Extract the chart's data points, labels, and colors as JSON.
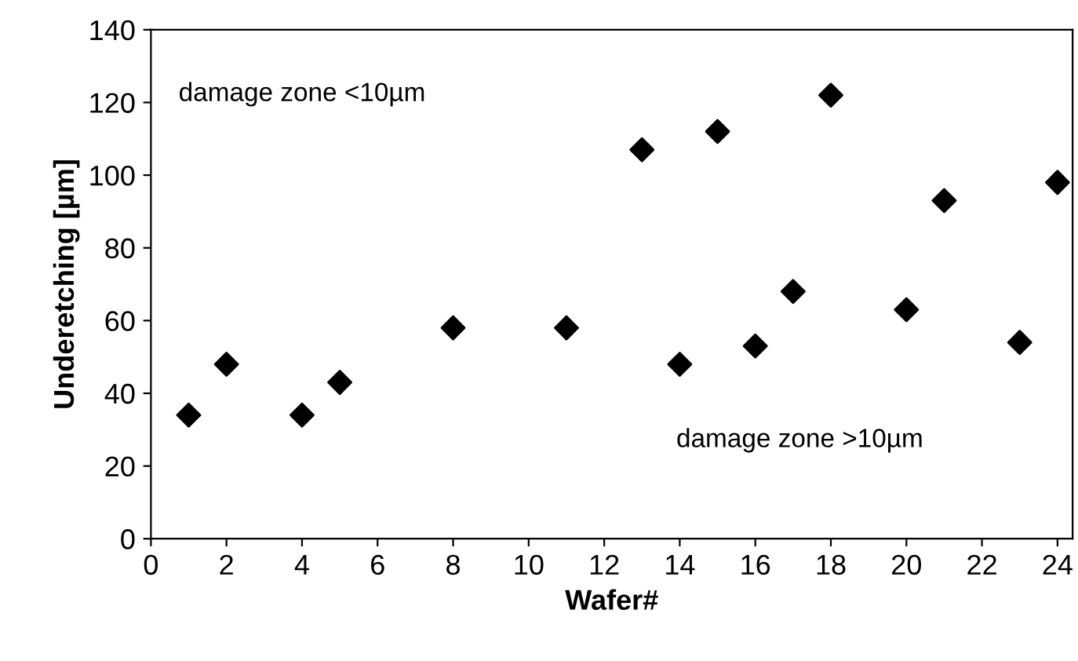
{
  "chart_data": {
    "type": "scatter",
    "xlabel": "Wafer#",
    "ylabel": "Underetching [µm]",
    "x": [
      1,
      2,
      4,
      5,
      8,
      11,
      13,
      14,
      15,
      16,
      17,
      18,
      20,
      21,
      23,
      24
    ],
    "values": [
      34,
      48,
      34,
      43,
      58,
      58,
      107,
      48,
      112,
      53,
      68,
      122,
      63,
      93,
      54,
      98
    ],
    "color": "#000000",
    "marker": "diamond",
    "xlim": [
      0,
      24.4
    ],
    "xticks": [
      0,
      2,
      4,
      6,
      8,
      10,
      12,
      14,
      16,
      18,
      20,
      22,
      24
    ],
    "ylim": [
      0,
      140
    ],
    "yticks": [
      0,
      20,
      40,
      60,
      80,
      100,
      120,
      140
    ],
    "grid": false,
    "annotations": [
      "damage zone <10µm",
      "damage zone >10µm"
    ]
  }
}
